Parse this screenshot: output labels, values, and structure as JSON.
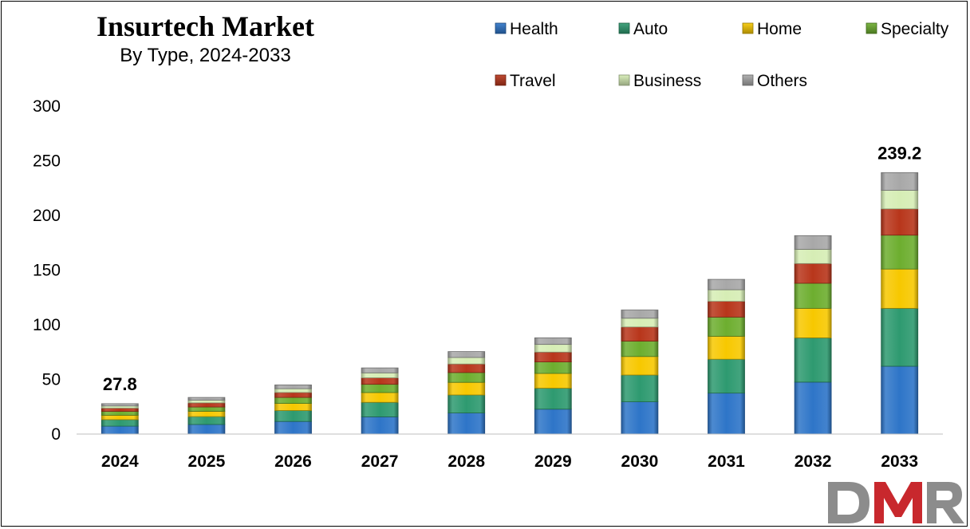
{
  "chart_data": {
    "type": "bar",
    "stacked": true,
    "title": "Insurtech Market",
    "subtitle": "By Type, 2024-2033",
    "xlabel": "",
    "ylabel": "",
    "ylim": [
      0,
      300
    ],
    "yticks": [
      0,
      50,
      100,
      150,
      200,
      250,
      300
    ],
    "grid": false,
    "legend_position": "top-right",
    "categories": [
      "2024",
      "2025",
      "2026",
      "2027",
      "2028",
      "2029",
      "2030",
      "2031",
      "2032",
      "2033"
    ],
    "series": [
      {
        "name": "Health",
        "color": "#2E75C8",
        "values": [
          7.2,
          8.8,
          11.5,
          15.8,
          19.3,
          22.8,
          29.5,
          37.5,
          47.5,
          62.0
        ]
      },
      {
        "name": "Auto",
        "color": "#2E9A70",
        "values": [
          6.0,
          7.2,
          10.0,
          13.2,
          16.5,
          19.2,
          24.5,
          31.0,
          40.5,
          53.0
        ]
      },
      {
        "name": "Home",
        "color": "#F7C800",
        "values": [
          4.0,
          4.8,
          6.5,
          9.0,
          11.5,
          13.5,
          17.0,
          21.0,
          27.0,
          36.0
        ]
      },
      {
        "name": "Specialty",
        "color": "#6DAE2F",
        "values": [
          3.5,
          4.0,
          5.5,
          7.5,
          9.0,
          10.5,
          14.0,
          17.5,
          23.0,
          31.0
        ]
      },
      {
        "name": "Travel",
        "color": "#B8361B",
        "values": [
          3.0,
          3.7,
          4.5,
          6.0,
          7.8,
          9.0,
          13.0,
          14.5,
          18.0,
          24.0
        ]
      },
      {
        "name": "Business",
        "color": "#D6EDB5",
        "values": [
          2.0,
          2.5,
          3.5,
          4.5,
          6.0,
          7.0,
          8.0,
          10.5,
          13.0,
          17.0
        ]
      },
      {
        "name": "Others",
        "color": "#A8A8A8",
        "values": [
          2.1,
          2.5,
          3.5,
          4.5,
          5.4,
          6.0,
          7.5,
          9.5,
          12.5,
          16.2
        ]
      }
    ],
    "annotations": [
      {
        "category": "2024",
        "label": "27.8"
      },
      {
        "category": "2033",
        "label": "239.2"
      }
    ]
  },
  "logo": {
    "text": "DMR",
    "colors": [
      "#8C8C8C",
      "#C8282D"
    ]
  }
}
